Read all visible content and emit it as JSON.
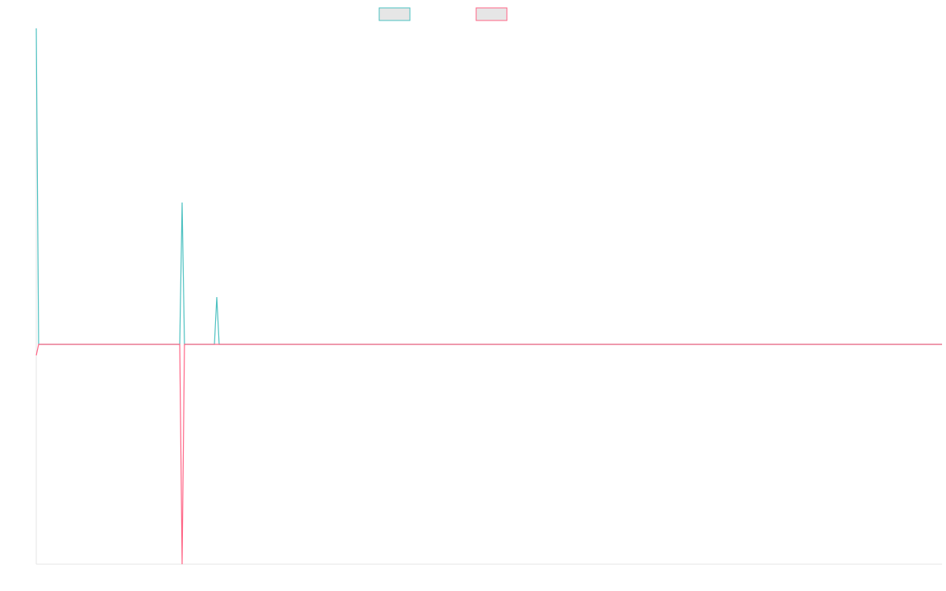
{
  "chart_data": {
    "type": "line",
    "x": [
      0,
      3,
      182,
      185,
      188,
      226,
      229,
      232,
      1149
    ],
    "xlim": [
      0,
      1149
    ],
    "ylim": [
      -279,
      401
    ],
    "series": [
      {
        "color": "#4bc0c0",
        "values": [
          401,
          0,
          0,
          180,
          0,
          0,
          60,
          0,
          0
        ]
      },
      {
        "color": "#ff6384",
        "values": [
          -14,
          0,
          0,
          -279,
          0,
          0,
          0,
          0,
          0
        ]
      }
    ]
  }
}
